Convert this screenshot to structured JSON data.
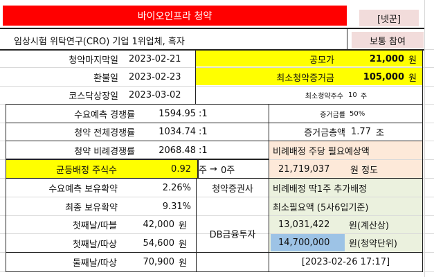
{
  "title": "바이오인프라 청약",
  "tag": "[넷꾼]",
  "company_desc": "임상시험 위탁연구(CRO) 기업 1위업체, 흑자",
  "recommendation": "보통 참여",
  "rows": {
    "deadline": {
      "label": "청약마지막일",
      "value": "2023-02-21"
    },
    "refund": {
      "label": "환불일",
      "value": "2023-02-23"
    },
    "listing": {
      "label": "코스닥상장일",
      "value": "2023-03-02"
    }
  },
  "offer_price": {
    "label": "공모가",
    "value": "21,000",
    "unit": "원"
  },
  "min_deposit": {
    "label": "최소청약증거금",
    "value": "105,000",
    "unit": "원"
  },
  "min_shares": {
    "label": "최소청약주수",
    "value": "10",
    "unit": "주"
  },
  "demand_ratio": {
    "label": "수요예측 경쟁률",
    "value": "1594.95",
    "suffix": ":1"
  },
  "deposit_rate": {
    "label": "증거금률",
    "value": "50%"
  },
  "total_ratio": {
    "label": "청약 전체경쟁률",
    "value": "1034.74",
    "suffix": ":1"
  },
  "total_deposit": {
    "label": "증거금총액",
    "value": "1.77",
    "unit": "조"
  },
  "prop_ratio": {
    "label": "청약 비례경쟁률",
    "value": "2068.48",
    "suffix": ":1"
  },
  "prop_per_share": {
    "label": "비례배정 주당 필요예상액",
    "value": "21,719,037",
    "unit": "원 정도"
  },
  "equal_alloc": {
    "label": "균등배정 주식수",
    "value": "0.92",
    "unit": "주",
    "arrow": "→",
    "result": "0주"
  },
  "holding_demand": {
    "label": "수요예측 보유확약",
    "value": "2.26%"
  },
  "holding_final": {
    "label": "최종 보유확약",
    "value": "9.31%"
  },
  "broker_label": "청약증권사",
  "broker_name": "DB금융투자",
  "prop_one_share": {
    "label": "비례배정 딱1주 추가배정",
    "label2": "최소필요액 (5사6입기준)",
    "calc_value": "13,031,422",
    "calc_unit": "원(계산상)",
    "unit_value": "14,700,000",
    "unit_unit": "원(청약단위)"
  },
  "price_rows": [
    {
      "label": "첫째날/따블",
      "value": "42,000",
      "unit": "원"
    },
    {
      "label": "첫째날/따상",
      "value": "54,600",
      "unit": "원"
    },
    {
      "label": "둘째날/따상",
      "value": "70,900",
      "unit": "원"
    }
  ],
  "timestamp": "[2023-02-26 17:17]",
  "colors": {
    "title_bg": "#ff0000",
    "tag_bg": "#f2dcdb",
    "yellow": "#ffff00",
    "peach": "#fde9d9",
    "green": "#ebf1de",
    "blue": "#9dc3e6"
  }
}
